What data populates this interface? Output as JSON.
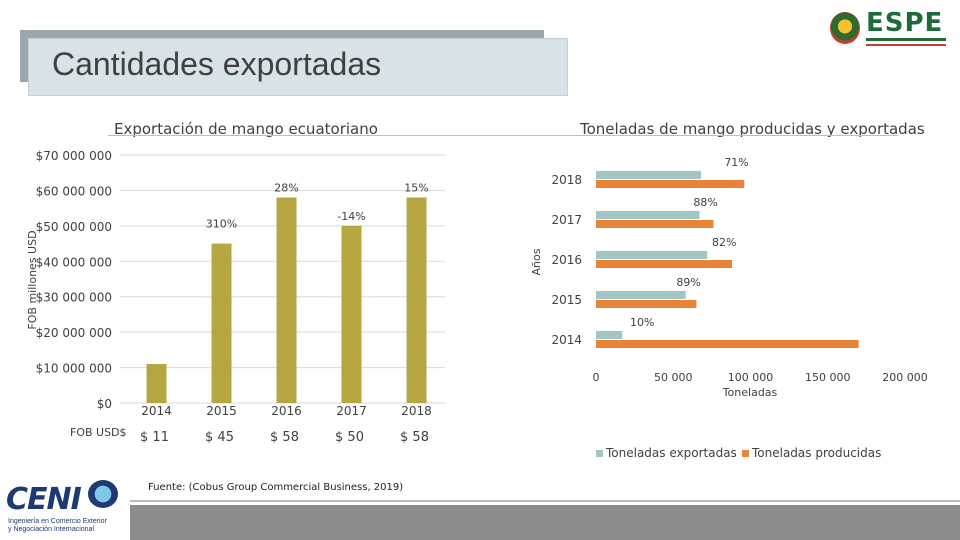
{
  "slide": {
    "title": "Cantidades exportadas",
    "source": "Fuente: (Cobus Group Commercial Business, 2019)",
    "logo_espe_text": "ESPE",
    "logo_ceni_text": "CENI",
    "logo_ceni_sub1": "Ingeniería en Comercio Exterior",
    "logo_ceni_sub2": "y Negociación Internacional"
  },
  "colors": {
    "olive": "#b5a642",
    "teal": "#9fc5c5",
    "orange": "#e8833a",
    "grid": "#d9d9d9"
  },
  "chart_data": [
    {
      "type": "bar",
      "title": "Exportación de mango ecuatoriano",
      "ylabel": "FOB millones USD",
      "ylim": [
        0,
        70000000
      ],
      "ytick_labels": [
        "$0",
        "$10 000 000",
        "$20 000 000",
        "$30 000 000",
        "$40 000 000",
        "$50 000 000",
        "$60 000 000",
        "$70 000 000"
      ],
      "categories": [
        "2014",
        "2015",
        "2016",
        "2017",
        "2018"
      ],
      "values": [
        11000000,
        45000000,
        58000000,
        50000000,
        58000000
      ],
      "growth_labels": [
        "",
        "310%",
        "28%",
        "-14%",
        "15%"
      ],
      "table_row_label": "FOB USD$",
      "table_values": [
        "$ 11",
        "$ 45",
        "$ 58",
        "$ 50",
        "$ 58"
      ]
    },
    {
      "type": "bar",
      "orientation": "horizontal",
      "title": "Toneladas de mango producidas y exportadas",
      "xlabel": "Toneladas",
      "ylabel": "Años",
      "xlim": [
        0,
        200000
      ],
      "xtick_labels": [
        "0",
        "50 000",
        "100 000",
        "150 000",
        "200 000"
      ],
      "categories": [
        "2014",
        "2015",
        "2016",
        "2017",
        "2018"
      ],
      "series": [
        {
          "name": "Toneladas exportadas",
          "values": [
            17000,
            58000,
            72000,
            67000,
            68000
          ]
        },
        {
          "name": "Toneladas producidas",
          "values": [
            170000,
            65000,
            88000,
            76000,
            96000
          ]
        }
      ],
      "percent_labels": [
        "10%",
        "89%",
        "82%",
        "88%",
        "71%"
      ],
      "legend": "bottom"
    }
  ]
}
